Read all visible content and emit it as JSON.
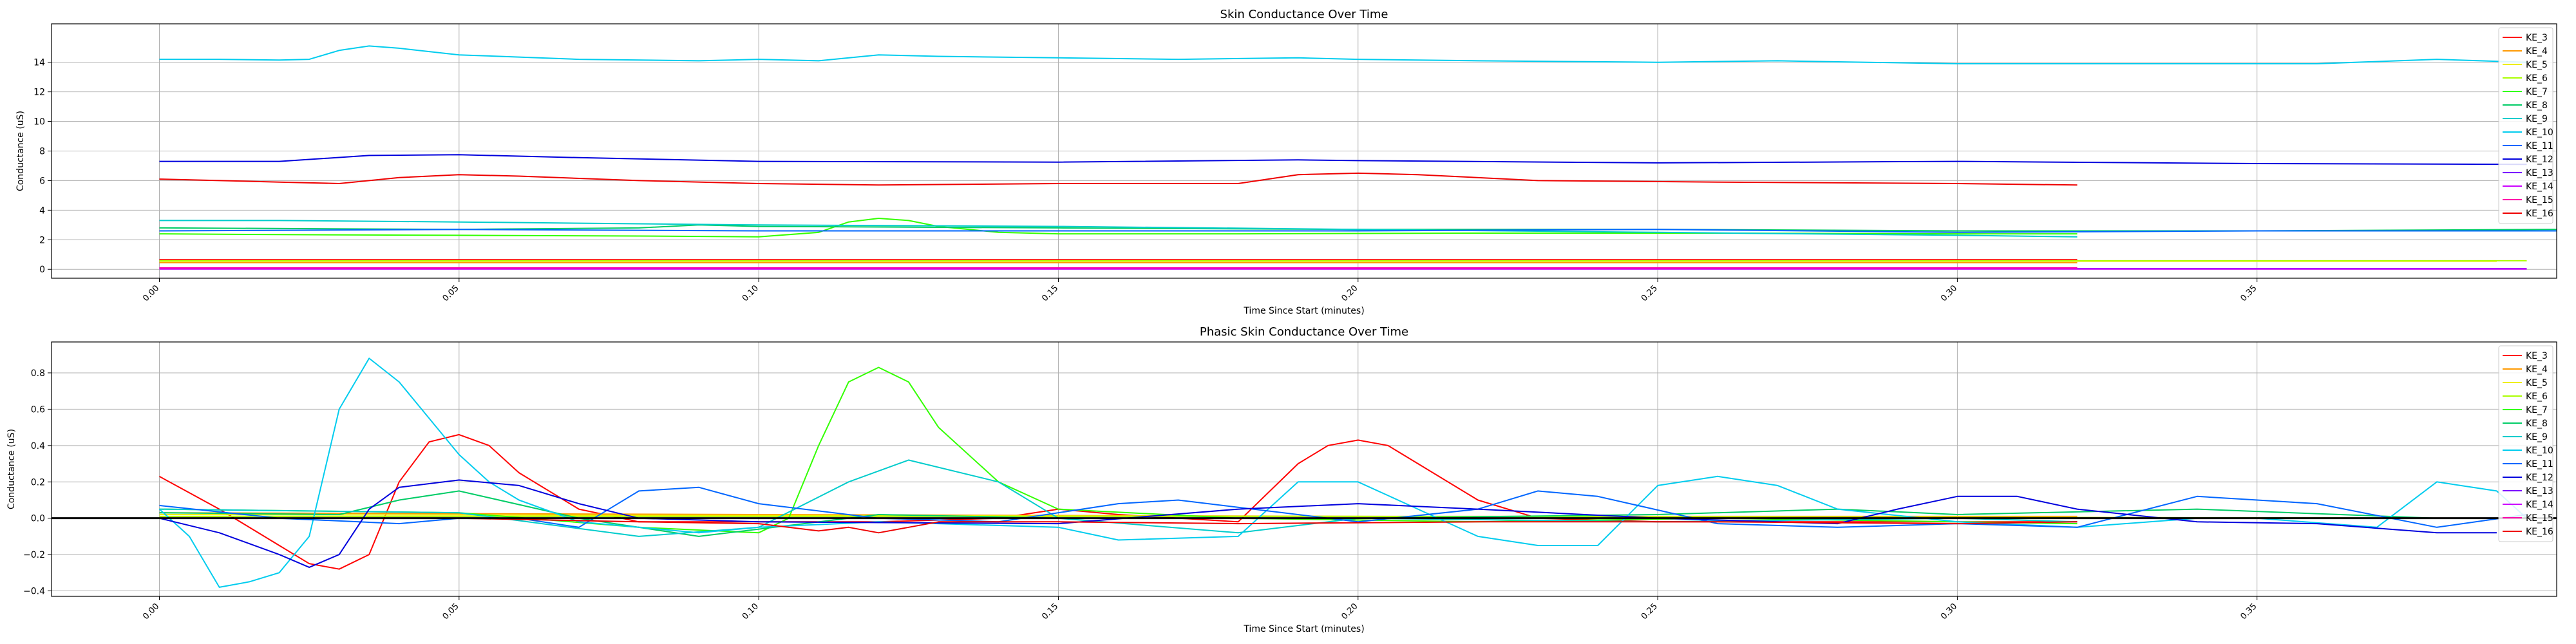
{
  "chart_data": [
    {
      "type": "line",
      "title": "Skin Conductance Over Time",
      "xlabel": "Time Since Start (minutes)",
      "ylabel": "Conductance (uS)",
      "xlim": [
        -0.018,
        0.4
      ],
      "ylim": [
        -0.6,
        16.6
      ],
      "xticks": [
        0.0,
        0.05,
        0.1,
        0.15,
        0.2,
        0.25,
        0.3,
        0.35
      ],
      "xtick_labels": [
        "0.00",
        "0.05",
        "0.10",
        "0.15",
        "0.20",
        "0.25",
        "0.30",
        "0.35"
      ],
      "yticks": [
        0,
        2,
        4,
        6,
        8,
        10,
        12,
        14
      ],
      "ytick_labels": [
        "0",
        "2",
        "4",
        "6",
        "8",
        "10",
        "12",
        "14"
      ],
      "grid": true,
      "legend_position": "top-right",
      "series": [
        {
          "name": "KE_3",
          "color": "#ff0000",
          "x": [
            0.0,
            0.32
          ],
          "y": [
            0.65,
            0.65
          ]
        },
        {
          "name": "KE_4",
          "color": "#ff9900",
          "x": [
            0.0,
            0.32
          ],
          "y": [
            0.45,
            0.45
          ]
        },
        {
          "name": "KE_5",
          "color": "#eeee00",
          "x": [
            0.0,
            0.39
          ],
          "y": [
            0.55,
            0.55
          ]
        },
        {
          "name": "KE_6",
          "color": "#aaff00",
          "x": [
            0.0,
            0.395
          ],
          "y": [
            0.58,
            0.58
          ]
        },
        {
          "name": "KE_7",
          "color": "#33ff00",
          "x": [
            0.0,
            0.02,
            0.05,
            0.08,
            0.1,
            0.11,
            0.115,
            0.12,
            0.125,
            0.13,
            0.14,
            0.15,
            0.18,
            0.22,
            0.26,
            0.3,
            0.32
          ],
          "y": [
            2.4,
            2.35,
            2.3,
            2.25,
            2.2,
            2.5,
            3.2,
            3.45,
            3.3,
            2.9,
            2.5,
            2.4,
            2.4,
            2.45,
            2.45,
            2.4,
            2.4
          ]
        },
        {
          "name": "KE_8",
          "color": "#00cc66",
          "x": [
            0.0,
            0.05,
            0.08,
            0.09,
            0.1,
            0.15,
            0.2,
            0.25,
            0.3,
            0.35,
            0.4
          ],
          "y": [
            2.8,
            2.7,
            2.8,
            3.0,
            2.9,
            2.8,
            2.7,
            2.7,
            2.6,
            2.6,
            2.7
          ]
        },
        {
          "name": "KE_9",
          "color": "#00cccc",
          "x": [
            0.0,
            0.02,
            0.05,
            0.1,
            0.15,
            0.2,
            0.25,
            0.3,
            0.32
          ],
          "y": [
            3.3,
            3.3,
            3.2,
            3.0,
            2.9,
            2.7,
            2.5,
            2.3,
            2.2
          ]
        },
        {
          "name": "KE_10",
          "color": "#00ccee",
          "x": [
            0.0,
            0.01,
            0.02,
            0.025,
            0.03,
            0.035,
            0.04,
            0.05,
            0.07,
            0.09,
            0.1,
            0.11,
            0.12,
            0.13,
            0.15,
            0.17,
            0.19,
            0.2,
            0.22,
            0.25,
            0.27,
            0.3,
            0.33,
            0.36,
            0.38,
            0.395
          ],
          "y": [
            14.2,
            14.2,
            14.15,
            14.2,
            14.8,
            15.1,
            14.95,
            14.5,
            14.2,
            14.1,
            14.2,
            14.1,
            14.5,
            14.4,
            14.3,
            14.2,
            14.3,
            14.2,
            14.1,
            14.0,
            14.1,
            13.9,
            13.9,
            13.9,
            14.2,
            14.0
          ]
        },
        {
          "name": "KE_11",
          "color": "#0066ff",
          "x": [
            0.0,
            0.05,
            0.1,
            0.15,
            0.2,
            0.25,
            0.3,
            0.35,
            0.4
          ],
          "y": [
            2.6,
            2.7,
            2.6,
            2.6,
            2.6,
            2.7,
            2.5,
            2.6,
            2.6
          ]
        },
        {
          "name": "KE_12",
          "color": "#0000dd",
          "x": [
            0.0,
            0.02,
            0.035,
            0.05,
            0.07,
            0.1,
            0.15,
            0.19,
            0.2,
            0.25,
            0.3,
            0.35,
            0.395
          ],
          "y": [
            7.3,
            7.3,
            7.7,
            7.75,
            7.55,
            7.3,
            7.25,
            7.4,
            7.35,
            7.2,
            7.3,
            7.15,
            7.1
          ]
        },
        {
          "name": "KE_13",
          "color": "#7a00ff",
          "x": [
            0.0,
            0.395
          ],
          "y": [
            0.05,
            0.05
          ]
        },
        {
          "name": "KE_14",
          "color": "#cc00ff",
          "x": [
            0.0,
            0.395
          ],
          "y": [
            0.02,
            0.02
          ]
        },
        {
          "name": "KE_15",
          "color": "#ff00aa",
          "x": [
            0.0,
            0.32
          ],
          "y": [
            0.1,
            0.1
          ]
        },
        {
          "name": "KE_16",
          "color": "#ee0000",
          "x": [
            0.0,
            0.02,
            0.03,
            0.04,
            0.05,
            0.06,
            0.08,
            0.1,
            0.12,
            0.15,
            0.18,
            0.19,
            0.2,
            0.21,
            0.23,
            0.26,
            0.3,
            0.32
          ],
          "y": [
            6.1,
            5.9,
            5.8,
            6.2,
            6.4,
            6.3,
            6.0,
            5.8,
            5.7,
            5.8,
            5.8,
            6.4,
            6.5,
            6.4,
            6.0,
            5.9,
            5.8,
            5.7
          ]
        }
      ]
    },
    {
      "type": "line",
      "title": "Phasic Skin Conductance Over Time",
      "xlabel": "Time Since Start (minutes)",
      "ylabel": "Conductance (uS)",
      "xlim": [
        -0.018,
        0.4
      ],
      "ylim": [
        -0.43,
        0.97
      ],
      "xticks": [
        0.0,
        0.05,
        0.1,
        0.15,
        0.2,
        0.25,
        0.3,
        0.35
      ],
      "xtick_labels": [
        "0.00",
        "0.05",
        "0.10",
        "0.15",
        "0.20",
        "0.25",
        "0.30",
        "0.35"
      ],
      "yticks": [
        -0.4,
        -0.2,
        0.0,
        0.2,
        0.4,
        0.6,
        0.8
      ],
      "ytick_labels": [
        "−0.4",
        "−0.2",
        "0.0",
        "0.2",
        "0.4",
        "0.6",
        "0.8"
      ],
      "grid": true,
      "zero_line": true,
      "legend_position": "top-right",
      "series": [
        {
          "name": "KE_3",
          "color": "#ff0000",
          "x": [
            0.0,
            0.01,
            0.02,
            0.025,
            0.03,
            0.035,
            0.04,
            0.045,
            0.05,
            0.055,
            0.06,
            0.07,
            0.08,
            0.1,
            0.12,
            0.14,
            0.15,
            0.16,
            0.18,
            0.19,
            0.195,
            0.2,
            0.205,
            0.21,
            0.22,
            0.23,
            0.25,
            0.3,
            0.32
          ],
          "y": [
            0.23,
            0.05,
            -0.15,
            -0.25,
            -0.28,
            -0.2,
            0.2,
            0.42,
            0.46,
            0.4,
            0.25,
            0.05,
            -0.02,
            -0.02,
            -0.02,
            0.0,
            0.05,
            0.02,
            -0.02,
            0.3,
            0.4,
            0.43,
            0.4,
            0.3,
            0.1,
            0.0,
            -0.02,
            -0.02,
            -0.02
          ]
        },
        {
          "name": "KE_4",
          "color": "#ff9900",
          "x": [
            0.0,
            0.1,
            0.2,
            0.32
          ],
          "y": [
            0.03,
            0.02,
            0.01,
            0.01
          ]
        },
        {
          "name": "KE_5",
          "color": "#eeee00",
          "x": [
            0.0,
            0.2,
            0.39
          ],
          "y": [
            0.02,
            0.01,
            0.0
          ]
        },
        {
          "name": "KE_6",
          "color": "#aaff00",
          "x": [
            0.0,
            0.2,
            0.395
          ],
          "y": [
            0.01,
            0.01,
            0.0
          ]
        },
        {
          "name": "KE_7",
          "color": "#33ff00",
          "x": [
            0.0,
            0.05,
            0.08,
            0.1,
            0.105,
            0.11,
            0.115,
            0.12,
            0.125,
            0.13,
            0.14,
            0.15,
            0.18,
            0.22,
            0.26,
            0.3,
            0.32
          ],
          "y": [
            0.05,
            0.03,
            -0.05,
            -0.08,
            0.0,
            0.4,
            0.75,
            0.83,
            0.75,
            0.5,
            0.2,
            0.05,
            0.0,
            -0.02,
            0.0,
            -0.02,
            -0.03
          ]
        },
        {
          "name": "KE_8",
          "color": "#00cc66",
          "x": [
            0.0,
            0.03,
            0.04,
            0.05,
            0.07,
            0.09,
            0.12,
            0.15,
            0.2,
            0.25,
            0.28,
            0.3,
            0.34,
            0.38,
            0.395
          ],
          "y": [
            0.03,
            0.02,
            0.1,
            0.15,
            0.0,
            -0.1,
            0.02,
            0.0,
            0.0,
            0.02,
            0.05,
            0.02,
            0.05,
            0.0,
            0.0
          ]
        },
        {
          "name": "KE_9",
          "color": "#00cccc",
          "x": [
            0.0,
            0.05,
            0.08,
            0.1,
            0.115,
            0.125,
            0.14,
            0.15,
            0.18,
            0.2,
            0.25,
            0.3,
            0.32
          ],
          "y": [
            0.05,
            0.03,
            -0.1,
            -0.05,
            0.2,
            0.32,
            0.2,
            0.0,
            -0.08,
            0.0,
            -0.02,
            0.0,
            -0.02
          ]
        },
        {
          "name": "KE_10",
          "color": "#00ccee",
          "x": [
            0.0,
            0.005,
            0.01,
            0.015,
            0.02,
            0.025,
            0.03,
            0.035,
            0.04,
            0.045,
            0.05,
            0.055,
            0.06,
            0.07,
            0.08,
            0.09,
            0.1,
            0.12,
            0.15,
            0.16,
            0.18,
            0.19,
            0.2,
            0.21,
            0.22,
            0.23,
            0.24,
            0.25,
            0.26,
            0.27,
            0.28,
            0.3,
            0.32,
            0.34,
            0.35,
            0.37,
            0.38,
            0.39,
            0.395
          ],
          "y": [
            0.05,
            -0.1,
            -0.38,
            -0.35,
            -0.3,
            -0.1,
            0.6,
            0.88,
            0.75,
            0.55,
            0.35,
            0.2,
            0.1,
            -0.02,
            -0.05,
            -0.08,
            -0.05,
            -0.02,
            -0.05,
            -0.12,
            -0.1,
            0.2,
            0.2,
            0.05,
            -0.1,
            -0.15,
            -0.15,
            0.18,
            0.23,
            0.18,
            0.05,
            -0.02,
            -0.05,
            0.0,
            0.0,
            -0.05,
            0.2,
            0.15,
            0.0
          ]
        },
        {
          "name": "KE_11",
          "color": "#0066ff",
          "x": [
            0.0,
            0.02,
            0.04,
            0.05,
            0.06,
            0.07,
            0.08,
            0.09,
            0.1,
            0.12,
            0.14,
            0.16,
            0.17,
            0.2,
            0.22,
            0.23,
            0.24,
            0.26,
            0.28,
            0.3,
            0.32,
            0.34,
            0.36,
            0.38,
            0.395
          ],
          "y": [
            0.07,
            0.0,
            -0.03,
            0.0,
            0.0,
            -0.05,
            0.15,
            0.17,
            0.08,
            0.0,
            -0.02,
            0.08,
            0.1,
            -0.02,
            0.05,
            0.15,
            0.12,
            -0.03,
            -0.05,
            -0.03,
            -0.05,
            0.12,
            0.08,
            -0.05,
            0.02
          ]
        },
        {
          "name": "KE_12",
          "color": "#0000dd",
          "x": [
            0.0,
            0.01,
            0.02,
            0.025,
            0.03,
            0.035,
            0.04,
            0.05,
            0.06,
            0.07,
            0.08,
            0.1,
            0.15,
            0.18,
            0.2,
            0.22,
            0.25,
            0.27,
            0.28,
            0.29,
            0.3,
            0.31,
            0.32,
            0.34,
            0.36,
            0.38,
            0.39
          ],
          "y": [
            0.0,
            -0.08,
            -0.2,
            -0.27,
            -0.2,
            0.05,
            0.17,
            0.21,
            0.18,
            0.08,
            0.0,
            -0.02,
            -0.03,
            0.05,
            0.08,
            0.05,
            0.0,
            -0.02,
            -0.03,
            0.05,
            0.12,
            0.12,
            0.05,
            -0.02,
            -0.03,
            -0.08,
            -0.08
          ]
        },
        {
          "name": "KE_13",
          "color": "#7a00ff",
          "x": [
            0.0,
            0.395
          ],
          "y": [
            0.0,
            0.0
          ]
        },
        {
          "name": "KE_14",
          "color": "#cc00ff",
          "x": [
            0.0,
            0.395
          ],
          "y": [
            0.0,
            0.0
          ]
        },
        {
          "name": "KE_15",
          "color": "#ff00aa",
          "x": [
            0.0,
            0.32
          ],
          "y": [
            0.0,
            0.0
          ]
        },
        {
          "name": "KE_16",
          "color": "#ee0000",
          "x": [
            0.0,
            0.05,
            0.08,
            0.1,
            0.11,
            0.115,
            0.12,
            0.125,
            0.13,
            0.15,
            0.18,
            0.22,
            0.26,
            0.3,
            0.32
          ],
          "y": [
            0.0,
            0.0,
            -0.02,
            -0.03,
            -0.07,
            -0.05,
            -0.08,
            -0.05,
            -0.02,
            -0.02,
            -0.03,
            -0.02,
            -0.02,
            -0.03,
            -0.02
          ]
        }
      ]
    }
  ]
}
